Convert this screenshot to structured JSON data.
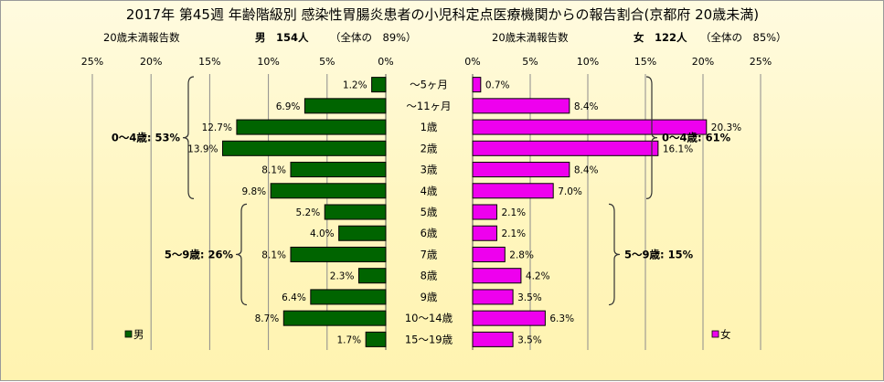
{
  "chart_data": {
    "type": "bar",
    "title": "2017年 第45週 年齢階級別 感染性胃腸炎患者の小児科定点医療機関からの報告割合(京都府 20歳未満)",
    "categories": [
      "～5ヶ月",
      "～11ヶ月",
      "1歳",
      "2歳",
      "3歳",
      "4歳",
      "5歳",
      "6歳",
      "7歳",
      "8歳",
      "9歳",
      "10～14歳",
      "15～19歳"
    ],
    "ticks": [
      "0%",
      "5%",
      "10%",
      "15%",
      "20%",
      "25%"
    ],
    "xlim": [
      0,
      25
    ],
    "grid": true,
    "panels": [
      {
        "side": "left",
        "header_left": "20歳未満報告数",
        "header_main": "男　154人",
        "header_share": "（全体の　89%）",
        "series": [
          {
            "name": "男",
            "values": [
              1.2,
              6.9,
              12.7,
              13.9,
              8.1,
              9.8,
              5.2,
              4.0,
              8.1,
              2.3,
              6.4,
              8.7,
              1.7
            ]
          }
        ],
        "value_labels": [
          "1.2%",
          "6.9%",
          "12.7%",
          "13.9%",
          "8.1%",
          "9.8%",
          "5.2%",
          "4.0%",
          "8.1%",
          "2.3%",
          "6.4%",
          "8.7%",
          "1.7%"
        ],
        "groups": [
          {
            "label": "0～4歳: 53%",
            "from": 0,
            "to": 5
          },
          {
            "label": "5～9歳: 26%",
            "from": 6,
            "to": 10
          }
        ],
        "legend": "男",
        "legend_position": "bottom-left",
        "color": "#006400"
      },
      {
        "side": "right",
        "header_left": "20歳未満報告数",
        "header_main": "女　122人",
        "header_share": "（全体の　85%）",
        "series": [
          {
            "name": "女",
            "values": [
              0.7,
              8.4,
              20.3,
              16.1,
              8.4,
              7.0,
              2.1,
              2.1,
              2.8,
              4.2,
              3.5,
              6.3,
              3.5
            ]
          }
        ],
        "value_labels": [
          "0.7%",
          "8.4%",
          "20.3%",
          "16.1%",
          "8.4%",
          "7.0%",
          "2.1%",
          "2.1%",
          "2.8%",
          "4.2%",
          "3.5%",
          "6.3%",
          "3.5%"
        ],
        "groups": [
          {
            "label": "0～4歳: 61%",
            "from": 0,
            "to": 5
          },
          {
            "label": "5～9歳: 15%",
            "from": 6,
            "to": 10
          }
        ],
        "legend": "女",
        "legend_position": "bottom-right",
        "color": "#ee00ee"
      }
    ]
  }
}
